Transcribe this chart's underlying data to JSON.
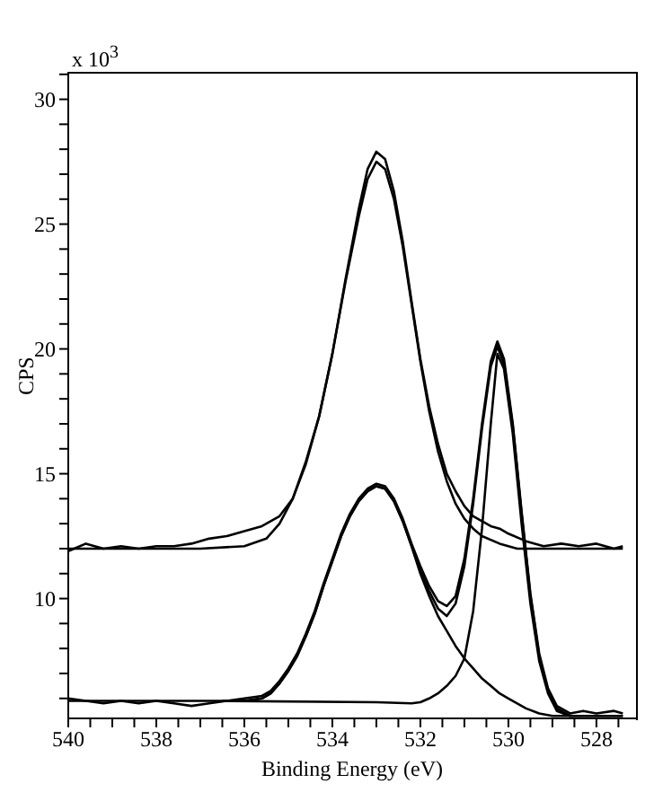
{
  "chart_data": {
    "type": "line",
    "xlabel": "Binding Energy (eV)",
    "ylabel": "CPS",
    "annotations": [
      "x 10$^{3}$"
    ],
    "xlim": [
      540,
      527.1
    ],
    "ylim": [
      5.2,
      31.1
    ],
    "xticks": [
      540,
      {
        "value": 539.5,
        "label": null
      },
      {
        "value": 539,
        "label": null
      },
      {
        "value": 538.5,
        "label": null
      },
      538,
      {
        "value": 537.5,
        "label": null
      },
      {
        "value": 537,
        "label": null
      },
      {
        "value": 536.5,
        "label": null
      },
      536,
      {
        "value": 535.5,
        "label": null
      },
      {
        "value": 535,
        "label": null
      },
      {
        "value": 534.5,
        "label": null
      },
      534,
      {
        "value": 533.5,
        "label": null
      },
      {
        "value": 533,
        "label": null
      },
      {
        "value": 532.5,
        "label": null
      },
      532,
      {
        "value": 531.5,
        "label": null
      },
      {
        "value": 531,
        "label": null
      },
      {
        "value": 530.5,
        "label": null
      },
      530,
      {
        "value": 529.5,
        "label": null
      },
      {
        "value": 529,
        "label": null
      },
      {
        "value": 528.5,
        "label": null
      },
      528,
      {
        "value": 527.5,
        "label": null
      }
    ],
    "yticks": [
      {
        "value": 6,
        "label": null
      },
      {
        "value": 7,
        "label": null
      },
      {
        "value": 8,
        "label": null
      },
      {
        "value": 9,
        "label": null
      },
      10,
      {
        "value": 11,
        "label": null
      },
      {
        "value": 12,
        "label": null
      },
      {
        "value": 13,
        "label": null
      },
      {
        "value": 14,
        "label": null
      },
      15,
      {
        "value": 16,
        "label": null
      },
      {
        "value": 17,
        "label": null
      },
      {
        "value": 18,
        "label": null
      },
      {
        "value": 19,
        "label": null
      },
      20,
      {
        "value": 21,
        "label": null
      },
      {
        "value": 22,
        "label": null
      },
      {
        "value": 23,
        "label": null
      },
      {
        "value": 24,
        "label": null
      },
      25,
      {
        "value": 26,
        "label": null
      },
      {
        "value": 27,
        "label": null
      },
      {
        "value": 28,
        "label": null
      },
      {
        "value": 29,
        "label": null
      },
      30,
      {
        "value": 31,
        "label": null
      }
    ],
    "marker": "none",
    "line_style": "solid",
    "series": [
      {
        "color": "#000000",
        "x": [
          540,
          539.6,
          539.2,
          538.8,
          538.4,
          538,
          537.6,
          537.2,
          536.8,
          536.4,
          536,
          535.6,
          535.2,
          534.9,
          534.6,
          534.3,
          534,
          533.7,
          533.4,
          533.2,
          533,
          532.8,
          532.6,
          532.4,
          532.2,
          532,
          531.8,
          531.6,
          531.4,
          531.2,
          531,
          530.8,
          530.6,
          530.4,
          530.2,
          530,
          529.6,
          529.2,
          528.8,
          528.4,
          528,
          527.6,
          527.4
        ],
        "values": [
          11.9,
          12.2,
          12,
          12.1,
          12,
          12.1,
          12.1,
          12.2,
          12.4,
          12.5,
          12.7,
          12.9,
          13.3,
          14,
          15.5,
          17.3,
          19.8,
          22.8,
          25.6,
          27.2,
          27.9,
          27.6,
          26.3,
          24.3,
          21.9,
          19.6,
          17.7,
          16.2,
          15,
          14.3,
          13.7,
          13.3,
          13.1,
          12.9,
          12.8,
          12.6,
          12.3,
          12.1,
          12.2,
          12.1,
          12.2,
          12,
          12.1
        ]
      },
      {
        "color": "#000000",
        "x": [
          540,
          537,
          536,
          535.5,
          535.2,
          534.9,
          534.6,
          534.3,
          534,
          533.7,
          533.4,
          533.2,
          533,
          532.8,
          532.6,
          532.4,
          532.2,
          532,
          531.8,
          531.6,
          531.4,
          531.2,
          531,
          530.8,
          530.6,
          530.2,
          529.8,
          527.4
        ],
        "values": [
          12,
          12,
          12.1,
          12.4,
          13,
          14,
          15.4,
          17.3,
          19.8,
          22.7,
          25.3,
          26.8,
          27.5,
          27.2,
          26,
          24.1,
          21.8,
          19.5,
          17.5,
          15.9,
          14.7,
          13.8,
          13.2,
          12.8,
          12.5,
          12.2,
          12,
          12
        ]
      },
      {
        "color": "#000000",
        "x": [
          540,
          539.6,
          539.2,
          538.8,
          538.4,
          538,
          537.6,
          537.2,
          536.8,
          536.4,
          536,
          535.6,
          535.4,
          535.2,
          535,
          534.8,
          534.6,
          534.4,
          534.2,
          534,
          533.8,
          533.6,
          533.4,
          533.2,
          533,
          532.8,
          532.6,
          532.4,
          532.2,
          532,
          531.8,
          531.6,
          531.4,
          531.2,
          531,
          530.8,
          530.6,
          530.4,
          530.25,
          530.1,
          529.9,
          529.7,
          529.5,
          529.3,
          529.1,
          528.9,
          528.6,
          528.3,
          528,
          527.6,
          527.4
        ],
        "values": [
          6,
          5.9,
          5.8,
          5.9,
          5.8,
          5.9,
          5.8,
          5.7,
          5.8,
          5.9,
          6,
          6.1,
          6.3,
          6.7,
          7.2,
          7.8,
          8.6,
          9.5,
          10.6,
          11.6,
          12.6,
          13.4,
          14,
          14.4,
          14.6,
          14.5,
          14,
          13.2,
          12.2,
          11.3,
          10.5,
          9.9,
          9.7,
          10.1,
          11.6,
          14,
          17,
          19.5,
          20.3,
          19.6,
          17,
          13.5,
          10.2,
          7.8,
          6.4,
          5.7,
          5.4,
          5.5,
          5.4,
          5.5,
          5.4
        ]
      },
      {
        "color": "#000000",
        "x": [
          540,
          536,
          535.6,
          535.4,
          535.2,
          535,
          534.8,
          534.6,
          534.4,
          534.2,
          534,
          533.8,
          533.6,
          533.4,
          533.2,
          533,
          532.8,
          532.6,
          532.4,
          532.2,
          532,
          531.8,
          531.6,
          531.4,
          531.2,
          531,
          530.8,
          530.6,
          530.4,
          530.25,
          530.1,
          529.9,
          529.7,
          529.5,
          529.3,
          529.1,
          528.9,
          528.6,
          527.4
        ],
        "values": [
          5.9,
          5.9,
          6,
          6.2,
          6.6,
          7.1,
          7.7,
          8.5,
          9.4,
          10.5,
          11.5,
          12.5,
          13.3,
          13.9,
          14.3,
          14.5,
          14.4,
          13.9,
          13.1,
          12.1,
          11.1,
          10.3,
          9.6,
          9.3,
          9.8,
          11.3,
          13.8,
          16.8,
          19.3,
          20.1,
          19.4,
          16.9,
          13.4,
          10.1,
          7.7,
          6.3,
          5.6,
          5.3,
          5.3
        ]
      },
      {
        "color": "#000000",
        "x": [
          536.5,
          536,
          535.6,
          535.4,
          535.2,
          535,
          534.8,
          534.6,
          534.4,
          534.2,
          534,
          533.8,
          533.6,
          533.4,
          533.2,
          533,
          532.8,
          532.6,
          532.4,
          532.2,
          532,
          531.8,
          531.6,
          531.4,
          531.2,
          531,
          530.8,
          530.6,
          530.4,
          530.2,
          530,
          529.8,
          529.6,
          529.3,
          529,
          528.6
        ],
        "values": [
          5.9,
          5.9,
          6,
          6.2,
          6.6,
          7.1,
          7.7,
          8.5,
          9.4,
          10.5,
          11.5,
          12.5,
          13.3,
          13.9,
          14.3,
          14.5,
          14.4,
          13.9,
          13.1,
          12.1,
          11,
          10.1,
          9.3,
          8.7,
          8.1,
          7.6,
          7.2,
          6.8,
          6.5,
          6.2,
          6,
          5.8,
          5.6,
          5.4,
          5.3,
          5.3
        ]
      },
      {
        "color": "#000000",
        "x": [
          536.5,
          533,
          532.2,
          532,
          531.8,
          531.6,
          531.4,
          531.2,
          531,
          530.8,
          530.6,
          530.4,
          530.25,
          530.1,
          529.9,
          529.7,
          529.5,
          529.3,
          529.1,
          528.9,
          528.6,
          527.4
        ],
        "values": [
          5.9,
          5.85,
          5.8,
          5.85,
          6,
          6.2,
          6.5,
          6.9,
          7.6,
          9.5,
          12.8,
          17,
          19.8,
          19.2,
          16.6,
          13,
          9.8,
          7.5,
          6.2,
          5.5,
          5.3,
          5.3
        ]
      }
    ]
  }
}
